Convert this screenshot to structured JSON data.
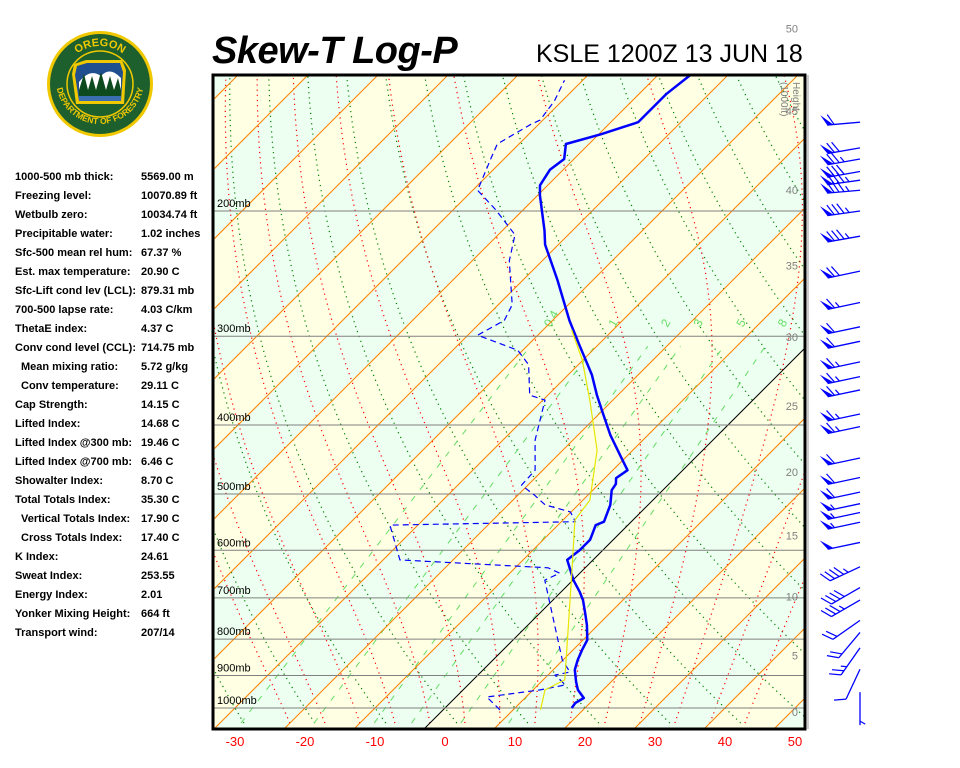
{
  "header": {
    "title": "Skew-T Log-P",
    "station": "KSLE 1200Z 13 JUN 18"
  },
  "logo": {
    "top_text": "OREGON",
    "bottom_text": "DEPARTMENT OF FORESTRY"
  },
  "stats": [
    {
      "label": "1000-500 mb thick:",
      "value": "5569.00 m"
    },
    {
      "label": "Freezing level:",
      "value": "10070.89 ft"
    },
    {
      "label": "Wetbulb zero:",
      "value": "10034.74 ft"
    },
    {
      "label": "Precipitable water:",
      "value": "1.02 inches"
    },
    {
      "label": "Sfc-500 mean rel hum:",
      "value": "67.37 %"
    },
    {
      "label": "Est. max temperature:",
      "value": "20.90 C"
    },
    {
      "label": "Sfc-Lift cond lev (LCL):",
      "value": "879.31 mb"
    },
    {
      "label": "700-500 lapse rate:",
      "value": "4.03 C/km"
    },
    {
      "label": "ThetaE index:",
      "value": "4.37 C"
    },
    {
      "label": "Conv cond level (CCL):",
      "value": "714.75 mb"
    },
    {
      "label": "Mean mixing ratio:",
      "value": "5.72 g/kg",
      "indent": true
    },
    {
      "label": "Conv temperature:",
      "value": "29.11 C",
      "indent": true
    },
    {
      "label": "Cap Strength:",
      "value": "14.15 C"
    },
    {
      "label": "Lifted Index:",
      "value": "14.68 C"
    },
    {
      "label": "Lifted Index @300 mb:",
      "value": "19.46 C"
    },
    {
      "label": "Lifted Index @700 mb:",
      "value": "6.46 C"
    },
    {
      "label": "Showalter Index:",
      "value": "8.70 C"
    },
    {
      "label": "Total Totals Index:",
      "value": "35.30 C"
    },
    {
      "label": "Vertical Totals Index:",
      "value": "17.90 C",
      "indent": true
    },
    {
      "label": "Cross Totals Index:",
      "value": "17.40 C",
      "indent": true
    },
    {
      "label": "K Index:",
      "value": "24.61"
    },
    {
      "label": "Sweat Index:",
      "value": "253.55"
    },
    {
      "label": "Energy Index:",
      "value": "2.01"
    },
    {
      "label": "Yonker Mixing Height:",
      "value": "664 ft"
    },
    {
      "label": "Transport wind:",
      "value": "207/14"
    }
  ],
  "chart_data": {
    "type": "line",
    "title": "Skew-T Log-P",
    "x_axis": {
      "ticks": [
        -30,
        -20,
        -10,
        0,
        10,
        20,
        30,
        40,
        50
      ],
      "tick_labels": [
        "-30",
        "-20",
        "-10",
        "0",
        "10",
        "20",
        "30",
        "40",
        "50"
      ],
      "unit": "C",
      "skew": true
    },
    "y_axis": {
      "scale": "log",
      "ylim_mb": [
        1050,
        127
      ],
      "ticks": [
        1000,
        900,
        800,
        700,
        600,
        500,
        400,
        300,
        200
      ],
      "tick_labels": [
        "1000mb",
        "900mb",
        "800mb",
        "700mb",
        "600mb",
        "500mb",
        "400mb",
        "300mb",
        "200mb"
      ]
    },
    "height_axis": {
      "label_line1": "Height",
      "label_line2": "(1000ft)",
      "ticks_kft": [
        0,
        5,
        10,
        15,
        20,
        25,
        30,
        35,
        40,
        45,
        50
      ],
      "tick_labels": [
        "0",
        "5",
        "10",
        "15",
        "20",
        "25",
        "30",
        "35",
        "40",
        "45",
        "50"
      ]
    },
    "mixing_ratio_labels": [
      "0.4",
      "1",
      "2",
      "3",
      "5",
      "8"
    ],
    "mixing_ratios": [
      0.4,
      1,
      2,
      3,
      5,
      8
    ],
    "series": [
      {
        "kind": "temperature",
        "style": "solid-thick",
        "color": "#0000ff",
        "points": [
          [
            1000,
            18.1
          ],
          [
            984,
            17.9
          ],
          [
            968,
            18.4
          ],
          [
            943,
            16.4
          ],
          [
            919,
            15.0
          ],
          [
            884,
            13.1
          ],
          [
            856,
            12.1
          ],
          [
            829,
            11.3
          ],
          [
            802,
            10.6
          ],
          [
            764,
            8.4
          ],
          [
            733,
            6.3
          ],
          [
            705,
            4.3
          ],
          [
            687,
            2.7
          ],
          [
            661,
            0.1
          ],
          [
            619,
            -3.7
          ],
          [
            600,
            -3.3
          ],
          [
            580,
            -3.3
          ],
          [
            553,
            -4.6
          ],
          [
            547,
            -3.9
          ],
          [
            518,
            -5.4
          ],
          [
            494,
            -7.3
          ],
          [
            484,
            -7.6
          ],
          [
            475,
            -8.4
          ],
          [
            463,
            -7.9
          ],
          [
            441,
            -11.1
          ],
          [
            413,
            -15.4
          ],
          [
            388,
            -19.1
          ],
          [
            363,
            -23.0
          ],
          [
            340,
            -26.6
          ],
          [
            309,
            -32.6
          ],
          [
            285,
            -37.6
          ],
          [
            250,
            -45.1
          ],
          [
            223,
            -51.9
          ],
          [
            213,
            -54.0
          ],
          [
            190,
            -59.7
          ],
          [
            184,
            -61.1
          ],
          [
            175,
            -61.9
          ],
          [
            169,
            -61.4
          ],
          [
            161,
            -63.3
          ],
          [
            156,
            -59.7
          ],
          [
            150,
            -56.1
          ],
          [
            137,
            -56.1
          ],
          [
            129,
            -55.4
          ]
        ]
      },
      {
        "kind": "dewpoint",
        "style": "dashed",
        "color": "#0000ff",
        "points": [
          [
            1006,
            8.1
          ],
          [
            965,
            4.4
          ],
          [
            943,
            11.0
          ],
          [
            928,
            13.9
          ],
          [
            899,
            11.0
          ],
          [
            890,
            12.7
          ],
          [
            856,
            9.9
          ],
          [
            661,
            -4.0
          ],
          [
            646,
            -2.9
          ],
          [
            635,
            -5.3
          ],
          [
            619,
            -27.6
          ],
          [
            553,
            -34.0
          ],
          [
            547,
            -8.0
          ],
          [
            530,
            -10.1
          ],
          [
            518,
            -14.7
          ],
          [
            502,
            -17.6
          ],
          [
            486,
            -20.9
          ],
          [
            463,
            -21.1
          ],
          [
            420,
            -25.4
          ],
          [
            369,
            -29.7
          ],
          [
            363,
            -32.6
          ],
          [
            329,
            -37.1
          ],
          [
            314,
            -40.7
          ],
          [
            299,
            -48.6
          ],
          [
            285,
            -46.9
          ],
          [
            271,
            -48.0
          ],
          [
            235,
            -54.7
          ],
          [
            216,
            -57.6
          ],
          [
            199,
            -64.0
          ],
          [
            187,
            -69.3
          ],
          [
            169,
            -71.9
          ],
          [
            161,
            -73.1
          ],
          [
            151,
            -71.1
          ],
          [
            149,
            -70.4
          ],
          [
            140,
            -71.1
          ],
          [
            131,
            -72.6
          ]
        ]
      },
      {
        "kind": "wetbulb",
        "style": "solid-thin",
        "color": "#e6e600",
        "points": [
          [
            1006,
            13.9
          ],
          [
            943,
            11.7
          ],
          [
            913,
            13.1
          ],
          [
            650,
            -0.9
          ],
          [
            544,
            -8.3
          ],
          [
            510,
            -9.0
          ],
          [
            434,
            -15.1
          ],
          [
            369,
            -23.3
          ],
          [
            324,
            -30.1
          ],
          [
            294,
            -35.9
          ]
        ]
      }
    ],
    "winds": [
      {
        "p": 150,
        "dir": 265,
        "kt": 60
      },
      {
        "p": 163,
        "dir": 260,
        "kt": 70
      },
      {
        "p": 169,
        "dir": 260,
        "kt": 75
      },
      {
        "p": 176,
        "dir": 260,
        "kt": 80
      },
      {
        "p": 181,
        "dir": 262,
        "kt": 85
      },
      {
        "p": 187,
        "dir": 265,
        "kt": 85
      },
      {
        "p": 200,
        "dir": 262,
        "kt": 85
      },
      {
        "p": 217,
        "dir": 260,
        "kt": 85
      },
      {
        "p": 243,
        "dir": 258,
        "kt": 70
      },
      {
        "p": 269,
        "dir": 258,
        "kt": 65
      },
      {
        "p": 291,
        "dir": 258,
        "kt": 60
      },
      {
        "p": 305,
        "dir": 258,
        "kt": 60
      },
      {
        "p": 326,
        "dir": 258,
        "kt": 65
      },
      {
        "p": 342,
        "dir": 258,
        "kt": 65
      },
      {
        "p": 357,
        "dir": 258,
        "kt": 65
      },
      {
        "p": 386,
        "dir": 258,
        "kt": 65
      },
      {
        "p": 402,
        "dir": 258,
        "kt": 65
      },
      {
        "p": 445,
        "dir": 258,
        "kt": 60
      },
      {
        "p": 474,
        "dir": 258,
        "kt": 60
      },
      {
        "p": 497,
        "dir": 258,
        "kt": 60
      },
      {
        "p": 516,
        "dir": 258,
        "kt": 55
      },
      {
        "p": 531,
        "dir": 258,
        "kt": 55
      },
      {
        "p": 548,
        "dir": 258,
        "kt": 55
      },
      {
        "p": 585,
        "dir": 258,
        "kt": 50
      },
      {
        "p": 633,
        "dir": 245,
        "kt": 45
      },
      {
        "p": 677,
        "dir": 240,
        "kt": 40
      },
      {
        "p": 705,
        "dir": 240,
        "kt": 35
      },
      {
        "p": 753,
        "dir": 235,
        "kt": 20
      },
      {
        "p": 783,
        "dir": 220,
        "kt": 20
      },
      {
        "p": 823,
        "dir": 215,
        "kt": 25
      },
      {
        "p": 882,
        "dir": 205,
        "kt": 10
      },
      {
        "p": 950,
        "dir": 180,
        "kt": 5
      }
    ]
  },
  "colors": {
    "temperature": "#0000ff",
    "isotherm": "#ff8000",
    "zero_isotherm": "#000000",
    "dry_adiabat": "#008000",
    "moist_adiabat": "#ff0000",
    "mixing_ratio": "#66dd66",
    "band_a": "#ffffe4",
    "band_b": "#ecfff0",
    "isobar": "#808080",
    "axis_label": "#ff0000",
    "height_label": "#808080"
  }
}
